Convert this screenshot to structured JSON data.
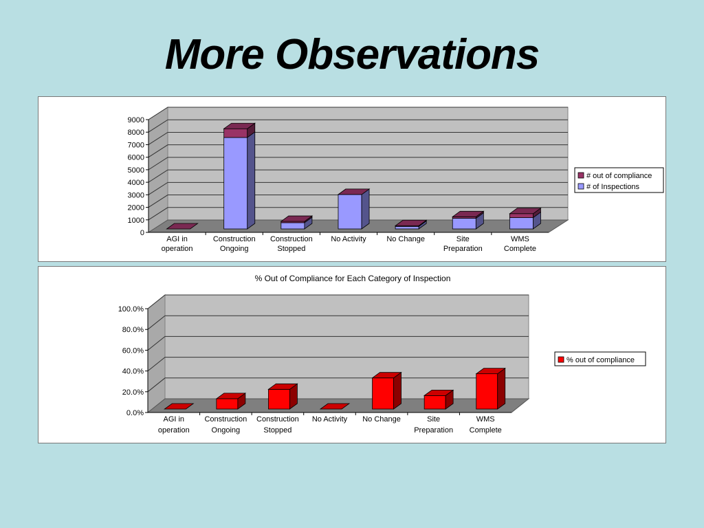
{
  "slide": {
    "title": "More Observations"
  },
  "chart_data": [
    {
      "type": "bar",
      "stacked": true,
      "three_d": true,
      "title": "",
      "categories": [
        [
          "AGI in",
          "operation"
        ],
        [
          "Construction",
          "Ongoing"
        ],
        [
          "Construction",
          "Stopped"
        ],
        [
          "No Activity"
        ],
        [
          "No Change"
        ],
        [
          "Site",
          "Preparation"
        ],
        [
          "WMS",
          "Complete"
        ]
      ],
      "series": [
        {
          "name": "# of Inspections",
          "color": "#9999ff",
          "values": [
            0,
            7300,
            500,
            2750,
            200,
            850,
            900
          ]
        },
        {
          "name": "# out of compliance",
          "color": "#993366",
          "values": [
            0,
            700,
            100,
            0,
            60,
            120,
            320
          ]
        }
      ],
      "y_ticks": [
        "0",
        "1000",
        "2000",
        "3000",
        "4000",
        "5000",
        "6000",
        "7000",
        "8000",
        "9000"
      ],
      "ylim": [
        0,
        9000
      ],
      "grid": true,
      "legend_position": "right",
      "legend_order": [
        "# out of compliance",
        "# of Inspections"
      ]
    },
    {
      "type": "bar",
      "three_d": true,
      "title": "% Out of Compliance for Each Category of Inspection",
      "categories": [
        [
          "AGI in",
          "operation"
        ],
        [
          "Construction",
          "Ongoing"
        ],
        [
          "Construction",
          "Stopped"
        ],
        [
          "No Activity"
        ],
        [
          "No Change"
        ],
        [
          "Site",
          "Preparation"
        ],
        [
          "WMS",
          "Complete"
        ]
      ],
      "series": [
        {
          "name": "% out of compliance",
          "color": "#ff0000",
          "values": [
            0,
            0.1,
            0.19,
            0,
            0.3,
            0.13,
            0.34
          ]
        }
      ],
      "y_ticks": [
        "0.0%",
        "20.0%",
        "40.0%",
        "60.0%",
        "80.0%",
        "100.0%"
      ],
      "ylim": [
        0,
        1.0
      ],
      "grid": true,
      "legend_position": "right",
      "legend_order": [
        "% out of compliance"
      ]
    }
  ]
}
